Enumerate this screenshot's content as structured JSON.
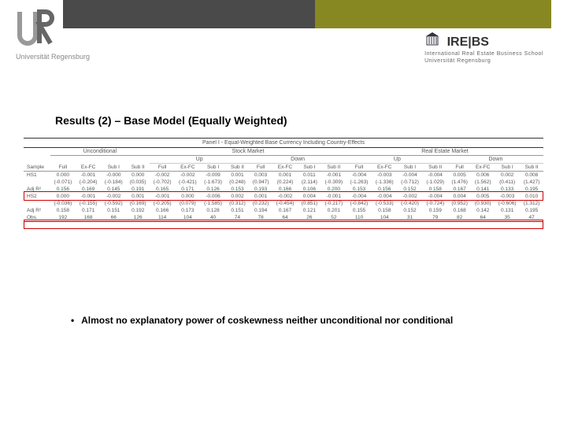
{
  "header": {
    "ur_label": "Universität Regensburg",
    "irebs_label": "IRE|BS",
    "irebs_sub1": "International Real Estate Business School",
    "irebs_sub2": "Universität Regensburg"
  },
  "title": "Results (2) – Base Model (Equally Weighted)",
  "table": {
    "panel_title": "Panel I - Equal-Weighted Base Currency Including Country-Effects",
    "market_groups": [
      "Unconditional",
      "Stock Market",
      "Real Estate Market"
    ],
    "sub_groups": [
      "Up",
      "Down",
      "Up",
      "Down"
    ],
    "col_headers": [
      "Sample",
      "Full",
      "Ex-FC",
      "Sub I",
      "Sub II",
      "Full",
      "Ex-FC",
      "Sub I",
      "Sub II",
      "Full",
      "Ex-FC",
      "Sub I",
      "Sub II",
      "Full",
      "Ex-FC",
      "Sub I",
      "Sub II",
      "Full",
      "Ex-FC",
      "Sub I",
      "Sub II"
    ],
    "rows": [
      {
        "label": "HS1",
        "v": [
          "0.000",
          "-0.001",
          "-0.000",
          "0.000",
          "-0.002",
          "-0.002",
          "-0.009",
          "0.001",
          "0.003",
          "0.001",
          "0.011",
          "-0.001",
          "-0.004",
          "-0.003",
          "-0.004",
          "-0.004",
          "0.005",
          "0.006",
          "0.002",
          "0.008"
        ]
      },
      {
        "label": "",
        "v": [
          "(-0.071)",
          "(-0.204)",
          "(-0.184)",
          "(0.035)",
          "(-0.702)",
          "(-0.421)",
          "(-1.673)",
          "(0.248)",
          "(0.947)",
          "(0.224)",
          "(2.114)",
          "(-0.309)",
          "(-1.263)",
          "(-1.336)",
          "(-0.712)",
          "(-1.029)",
          "(1.476)",
          "(1.562)",
          "(0.411)",
          "(1.427)"
        ]
      },
      {
        "label": "Adj R²",
        "v": [
          "0.156",
          "0.169",
          "0.145",
          "0.191",
          "0.165",
          "0.171",
          "0.126",
          "0.153",
          "0.193",
          "0.166",
          "0.106",
          "0.200",
          "0.153",
          "0.156",
          "0.152",
          "0.158",
          "0.167",
          "0.141",
          "0.133",
          "0.195"
        ]
      },
      {
        "label": "HS2",
        "v": [
          "0.000",
          "-0.001",
          "-0.002",
          "0.001",
          "-0.001",
          "0.000",
          "-0.006",
          "0.002",
          "0.001",
          "-0.002",
          "0.004",
          "-0.001",
          "-0.004",
          "-0.004",
          "-0.002",
          "-0.004",
          "0.004",
          "0.005",
          "-0.003",
          "0.010"
        ]
      },
      {
        "label": "",
        "v": [
          "(-0.036)",
          "(-0.155)",
          "(-0.592)",
          "(0.169)",
          "(-0.205)",
          "(0.079)",
          "(-1.585)",
          "(0.312)",
          "(0.232)",
          "(-0.454)",
          "(0.851)",
          "(-0.217)",
          "(-0.842)",
          "(-0.533)",
          "(-0.420)",
          "(-0.724)",
          "(0.952)",
          "(0.930)",
          "(-0.606)",
          "(1.312)"
        ]
      },
      {
        "label": "Adj R²",
        "v": [
          "0.158",
          "0.171",
          "0.151",
          "0.192",
          "0.166",
          "0.173",
          "0.128",
          "0.151",
          "0.194",
          "0.167",
          "0.121",
          "0.201",
          "0.155",
          "0.158",
          "0.152",
          "0.159",
          "0.168",
          "0.142",
          "0.131",
          "0.195"
        ]
      },
      {
        "label": "Obs.",
        "v": [
          "192",
          "168",
          "66",
          "126",
          "114",
          "104",
          "40",
          "74",
          "78",
          "64",
          "26",
          "52",
          "110",
          "104",
          "31",
          "79",
          "82",
          "64",
          "35",
          "47"
        ]
      }
    ]
  },
  "bullet": "Almost no explanatory power of coskewness neither unconditional nor conditional"
}
